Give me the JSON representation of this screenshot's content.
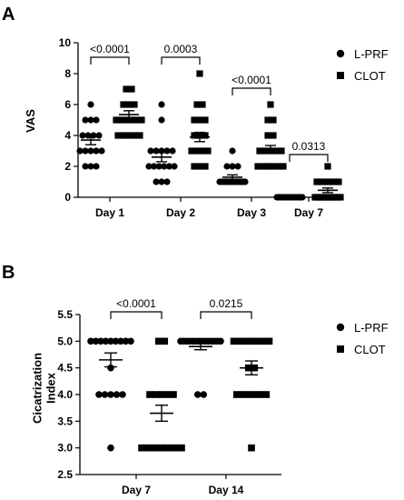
{
  "chart_data": [
    {
      "panel": "A",
      "type": "scatter",
      "ylabel": "VAS",
      "ylim": [
        0,
        10
      ],
      "yticks": [
        "0",
        "2",
        "4",
        "6",
        "8",
        "10"
      ],
      "categories": [
        "Day 1",
        "Day 2",
        "Day 3",
        "Day 7"
      ],
      "series": [
        {
          "name": "L-PRF",
          "marker": "circle",
          "points": [
            [
              6,
              5,
              5,
              5,
              4,
              4,
              4,
              4,
              3,
              3,
              3,
              3,
              3,
              2,
              2,
              2
            ],
            [
              6,
              5,
              3,
              3,
              3,
              3,
              3,
              2,
              2,
              2,
              2,
              2,
              2,
              1,
              1,
              1
            ],
            [
              3,
              2,
              2,
              2,
              1,
              1,
              1,
              1,
              1,
              1,
              1,
              1,
              1,
              1,
              1,
              1
            ],
            [
              0,
              0,
              0,
              0,
              0,
              0,
              0,
              0,
              0,
              0,
              0,
              0,
              0,
              0,
              0,
              0
            ]
          ],
          "mean": [
            3.7,
            2.6,
            1.3,
            0.0
          ],
          "sem": [
            0.3,
            0.3,
            0.15,
            0.0
          ]
        },
        {
          "name": "CLOT",
          "marker": "square",
          "points": [
            [
              7,
              7,
              6,
              6,
              6,
              5,
              5,
              5,
              5,
              5,
              5,
              4,
              4,
              4,
              4,
              4
            ],
            [
              8,
              6,
              6,
              5,
              5,
              5,
              4,
              4,
              4,
              3,
              3,
              3,
              3,
              2,
              2,
              2
            ],
            [
              6,
              5,
              5,
              4,
              4,
              3,
              3,
              3,
              3,
              3,
              2,
              2,
              2,
              2,
              2,
              2
            ],
            [
              2,
              1,
              1,
              1,
              1,
              1,
              0,
              0,
              0,
              0,
              0,
              0,
              0,
              0,
              0,
              0
            ]
          ],
          "mean": [
            5.35,
            3.9,
            3.1,
            0.45
          ],
          "sem": [
            0.25,
            0.3,
            0.25,
            0.15
          ]
        }
      ],
      "comparisons": [
        "<0.0001",
        "0.0003",
        "<0.0001",
        "0.0313"
      ],
      "legend": "right"
    },
    {
      "panel": "B",
      "type": "scatter",
      "ylabel": "Cicatrization Index",
      "ylim": [
        2.5,
        5.5
      ],
      "yticks": [
        "2.5",
        "3.0",
        "3.5",
        "4.0",
        "4.5",
        "5.0",
        "5.5"
      ],
      "categories": [
        "Day 7",
        "Day 14"
      ],
      "series": [
        {
          "name": "L-PRF",
          "marker": "circle",
          "points": [
            [
              5,
              5,
              5,
              5,
              5,
              5,
              5,
              5,
              5,
              4.5,
              4,
              4,
              4,
              4,
              4,
              3
            ],
            [
              5,
              5,
              5,
              5,
              5,
              5,
              5,
              5,
              5,
              5,
              5,
              5,
              5,
              5,
              4,
              4
            ]
          ],
          "mean": [
            4.65,
            4.9
          ],
          "sem": [
            0.13,
            0.06
          ]
        },
        {
          "name": "CLOT",
          "marker": "square",
          "points": [
            [
              5,
              5,
              4,
              4,
              4,
              4,
              4,
              3,
              3,
              3,
              3,
              3,
              3,
              3,
              3,
              3
            ],
            [
              5,
              5,
              5,
              5,
              5,
              5,
              5,
              4.5,
              4.5,
              4,
              4,
              4,
              4,
              4,
              4,
              3
            ]
          ],
          "mean": [
            3.65,
            4.5
          ],
          "sem": [
            0.15,
            0.13
          ]
        }
      ],
      "comparisons": [
        "<0.0001",
        "0.0215"
      ],
      "legend": "right"
    }
  ]
}
